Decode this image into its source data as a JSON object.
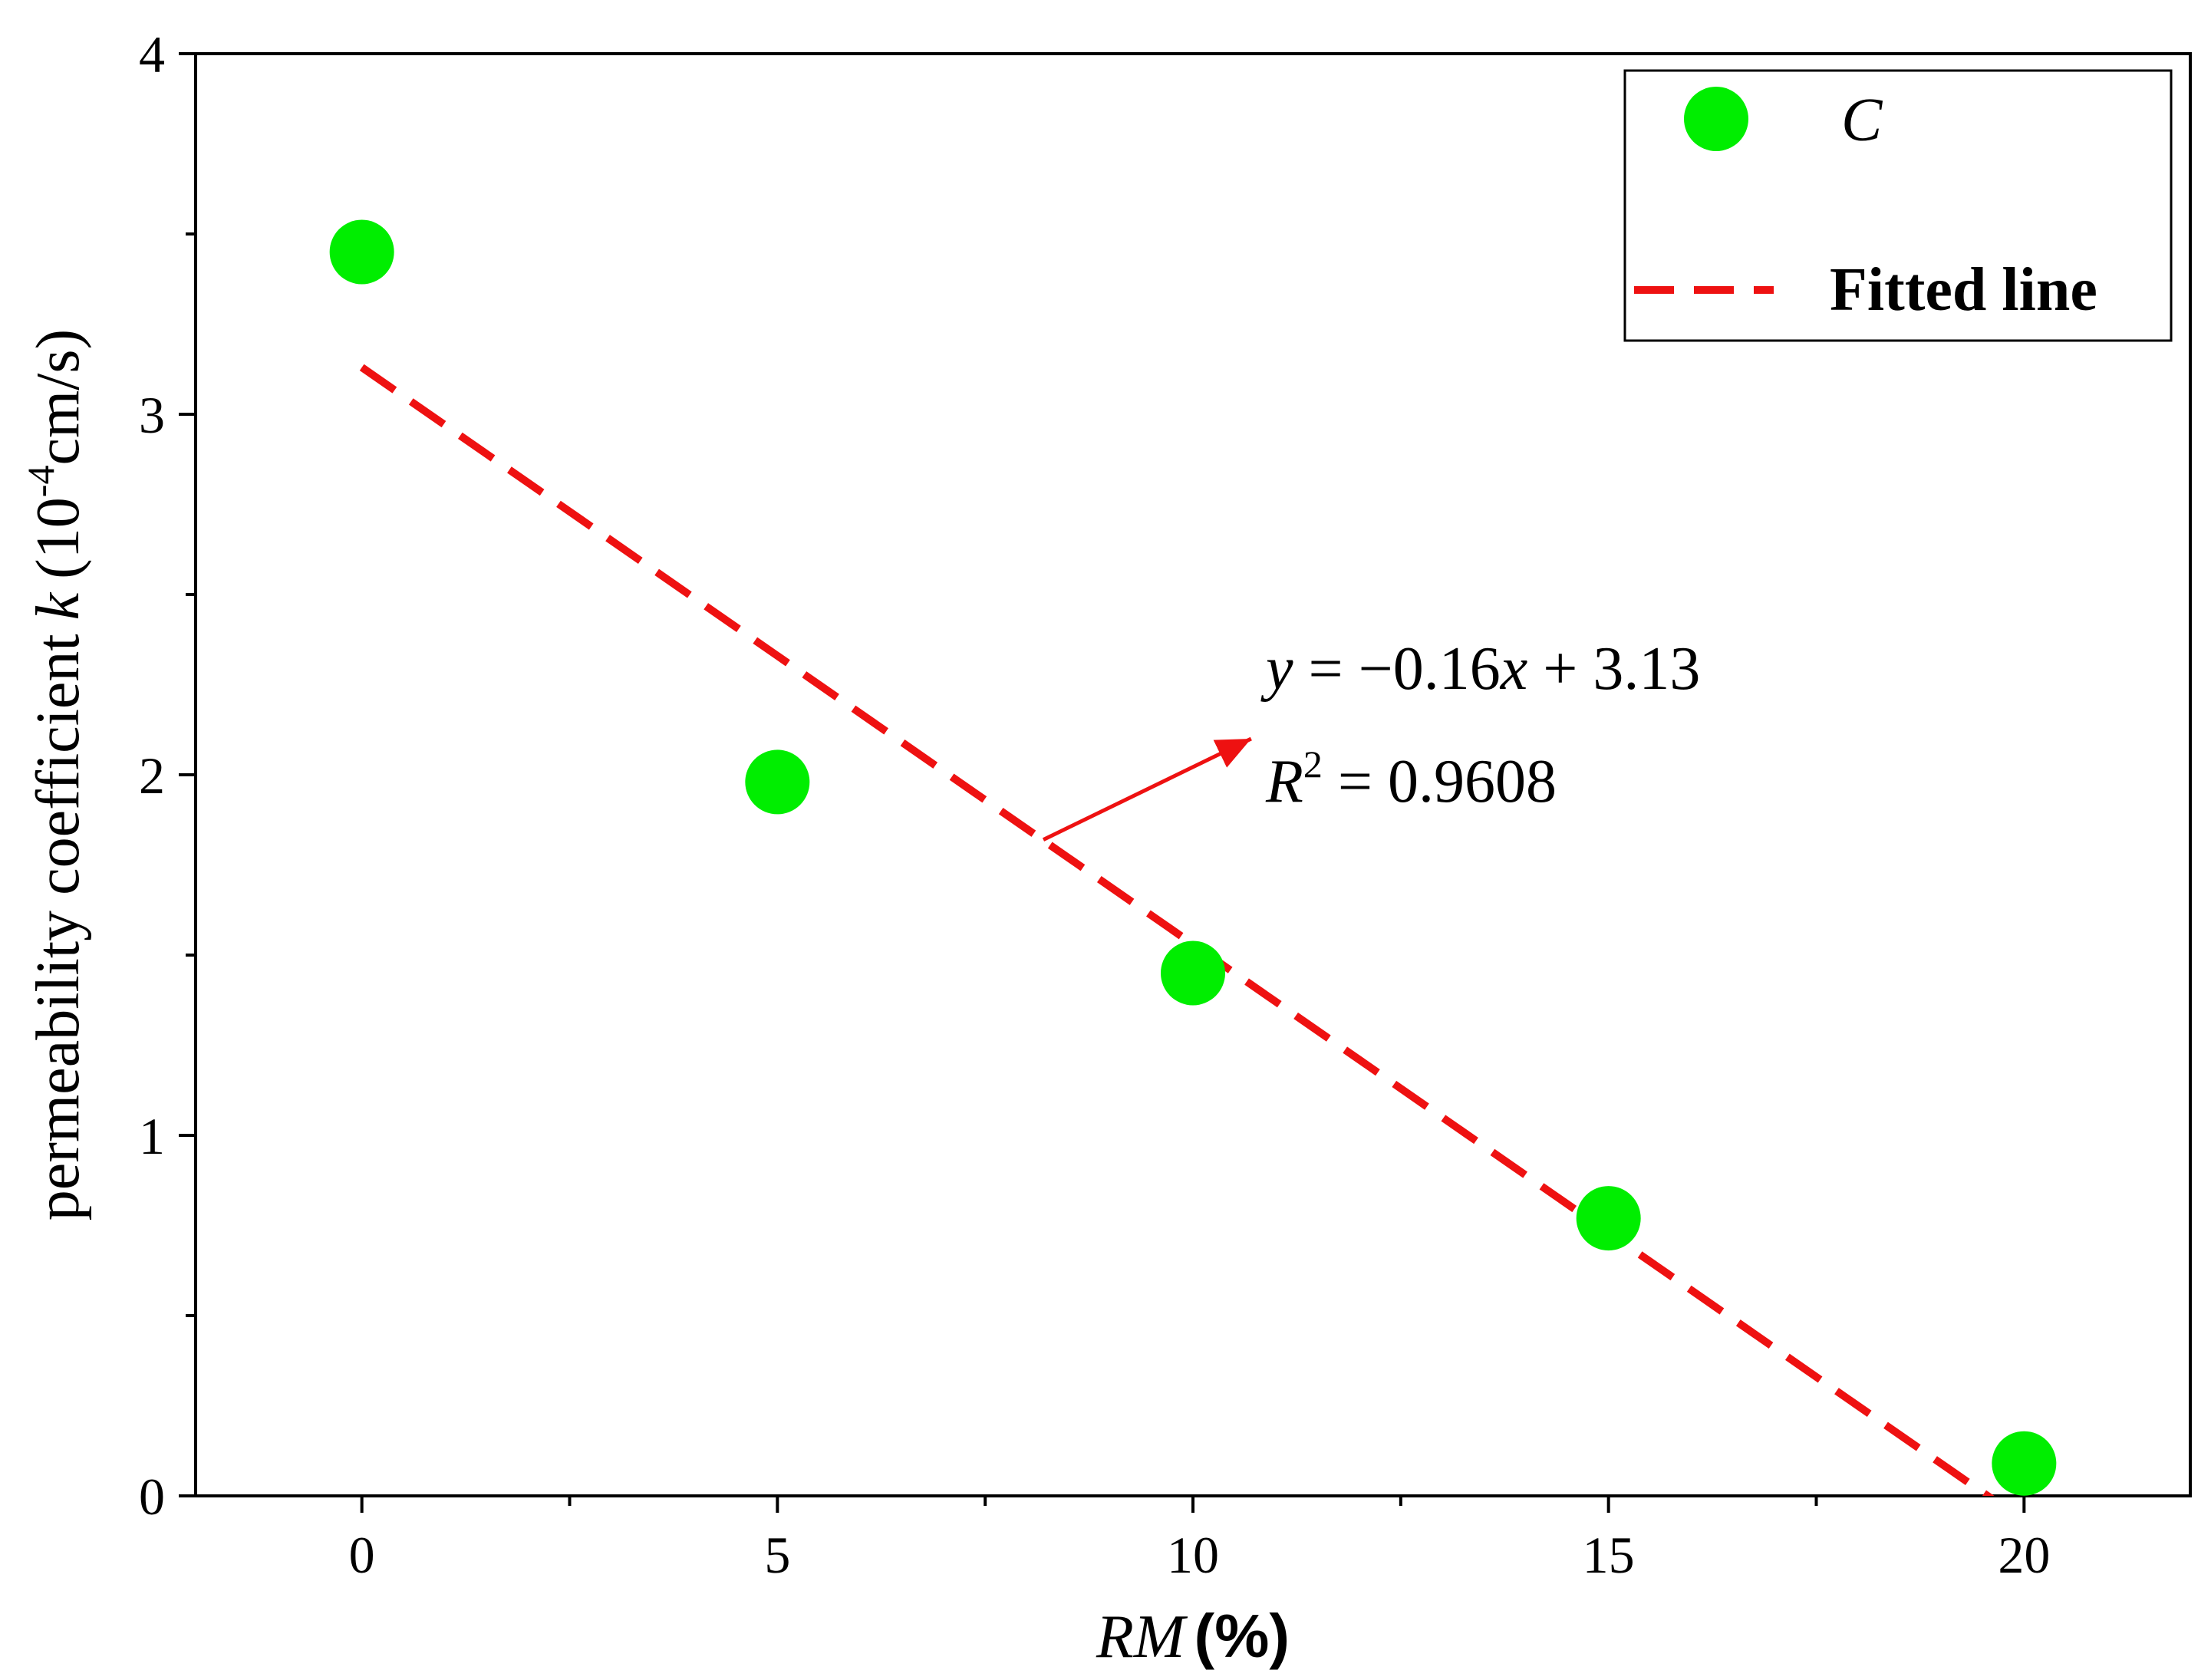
{
  "chart_data": {
    "type": "scatter",
    "xlabel": {
      "var": "RM",
      "unit": "(%)"
    },
    "ylabel": {
      "text": "permeability coefficient",
      "var": "k",
      "unit_prefix": "(10",
      "unit_exp": "-4",
      "unit_suffix": "cm/s)"
    },
    "xlim": [
      -2,
      22
    ],
    "ylim": [
      0,
      4
    ],
    "x_ticks": [
      0,
      5,
      10,
      15,
      20
    ],
    "x_tick_labels": [
      "0",
      "5",
      "10",
      "15",
      "20"
    ],
    "y_ticks": [
      0,
      1,
      2,
      3,
      4
    ],
    "y_tick_labels": [
      "0",
      "1",
      "2",
      "3",
      "4"
    ],
    "grid": false,
    "legend_position": "top-right",
    "series": [
      {
        "name": "C",
        "kind": "scatter",
        "color": "#00ee00",
        "x": [
          0,
          5,
          10,
          15,
          20
        ],
        "y": [
          3.45,
          1.98,
          1.45,
          0.77,
          0.09
        ]
      },
      {
        "name": "Fitted line",
        "kind": "line",
        "style": "dashed",
        "color": "#ee1111",
        "x": [
          0,
          20
        ],
        "y": [
          3.13,
          -0.07
        ]
      }
    ],
    "annotation": {
      "equation": {
        "y": "y",
        "eq": " = −0.16",
        "x": "x",
        "rest": " + 3.13"
      },
      "r2": {
        "r": "R",
        "sup": "2",
        "rest": " = 0.9608"
      },
      "arrow_from": [
        8.2,
        1.82
      ],
      "arrow_to": [
        10.7,
        2.1
      ]
    }
  }
}
